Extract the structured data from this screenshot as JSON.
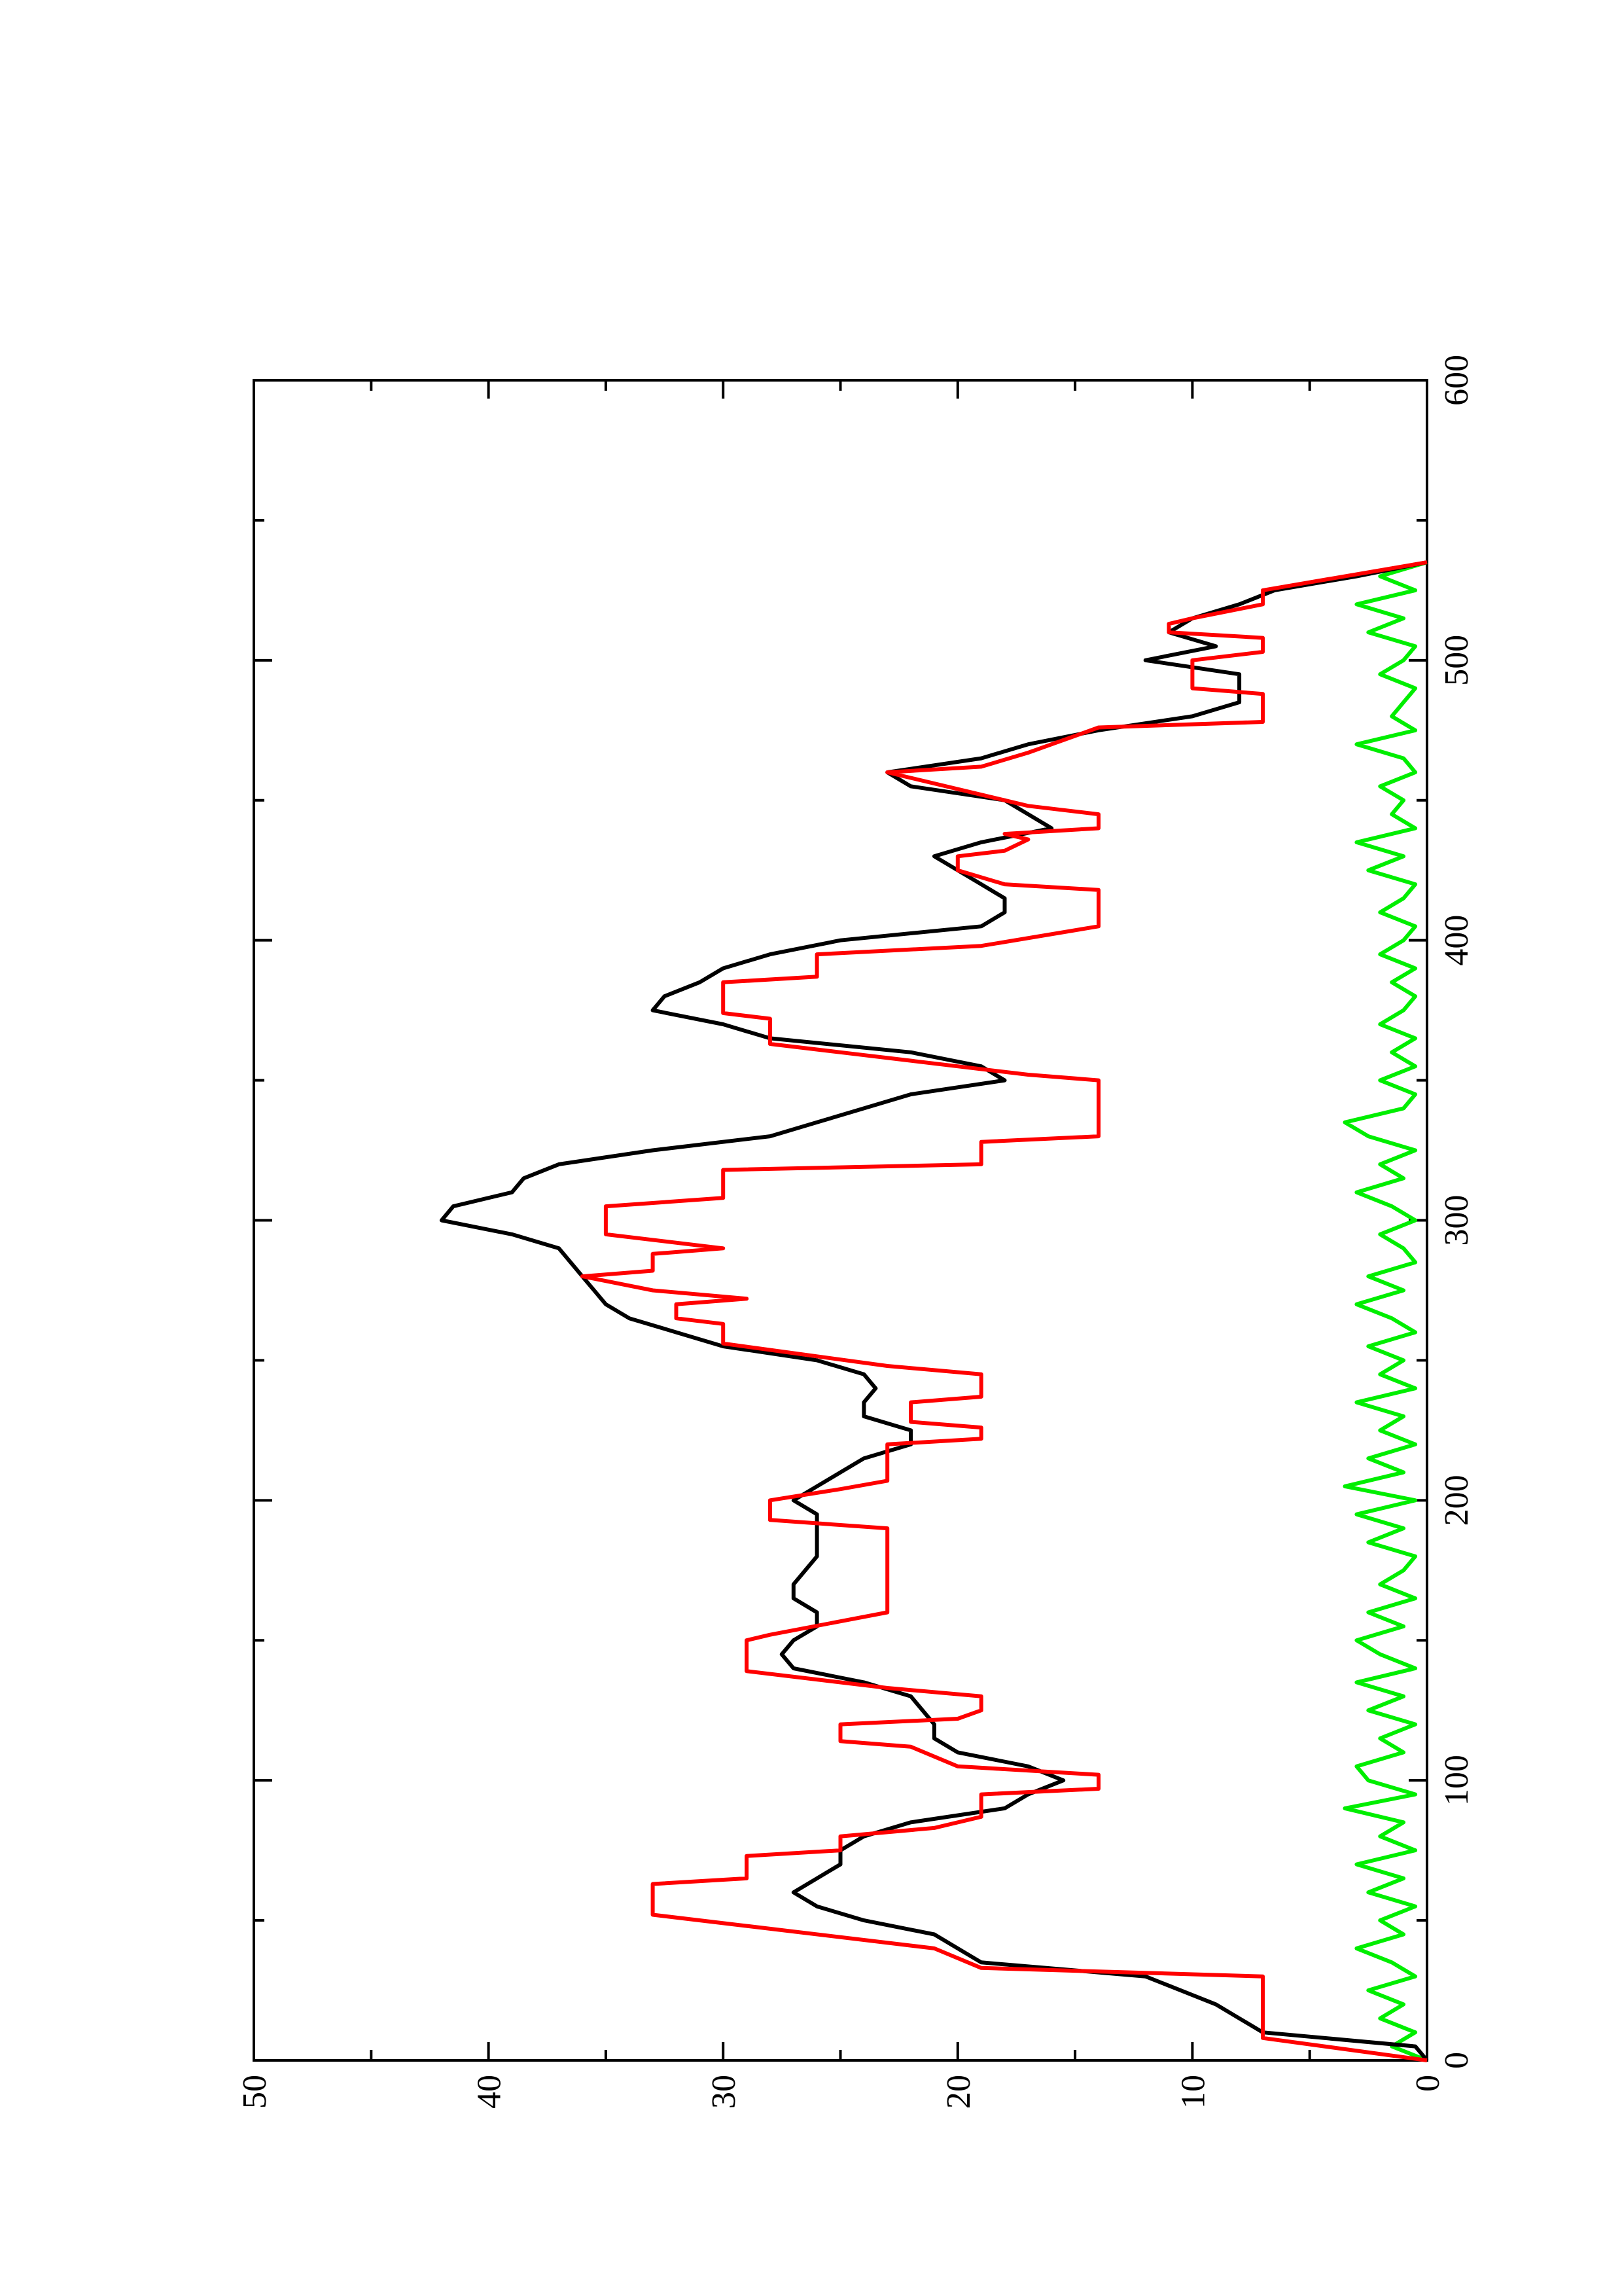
{
  "chart_data": {
    "type": "line",
    "xlim": [
      0,
      600
    ],
    "xticks": [
      0,
      100,
      200,
      300,
      400,
      500,
      600
    ],
    "xminor_ticks": [
      50,
      150,
      250,
      350,
      450,
      550
    ],
    "ylim": [
      0,
      50
    ],
    "yticks": [
      0,
      10,
      20,
      30,
      40,
      50
    ],
    "yminor_ticks": [
      5,
      15,
      25,
      35,
      45
    ],
    "series": [
      {
        "color": "#000000",
        "x": [
          0,
          5,
          10,
          15,
          20,
          30,
          35,
          40,
          45,
          50,
          55,
          60,
          65,
          70,
          75,
          80,
          85,
          90,
          95,
          100,
          105,
          110,
          115,
          120,
          125,
          130,
          135,
          140,
          145,
          150,
          155,
          160,
          165,
          170,
          175,
          180,
          185,
          190,
          195,
          200,
          205,
          210,
          215,
          220,
          225,
          230,
          235,
          240,
          245,
          250,
          255,
          260,
          265,
          270,
          275,
          280,
          285,
          290,
          295,
          300,
          305,
          310,
          315,
          320,
          325,
          330,
          335,
          340,
          345,
          350,
          355,
          360,
          365,
          370,
          375,
          380,
          385,
          390,
          395,
          400,
          405,
          410,
          415,
          420,
          425,
          430,
          435,
          440,
          445,
          450,
          455,
          460,
          465,
          470,
          475,
          480,
          485,
          490,
          495,
          500,
          505,
          510,
          515,
          520,
          525,
          530,
          535
        ],
        "values": [
          0,
          0.5,
          7,
          8,
          9,
          12,
          19,
          20,
          21,
          24,
          26,
          27,
          26,
          25,
          25,
          24,
          22,
          18,
          17,
          15.5,
          17,
          20,
          21,
          21,
          21.5,
          22,
          24,
          27,
          27.5,
          27,
          26,
          26,
          27,
          27,
          26.5,
          26,
          26,
          26,
          26,
          27,
          26,
          25,
          24,
          22,
          22,
          24,
          24,
          23.5,
          24,
          26,
          30,
          32,
          34,
          35,
          35.5,
          36,
          36.5,
          37,
          39,
          42,
          41.5,
          39,
          38.5,
          37,
          33,
          28,
          26,
          24,
          22,
          18,
          19,
          22,
          28,
          30,
          33,
          32.5,
          31,
          30,
          28,
          25,
          19,
          18,
          18,
          19,
          20,
          21,
          19,
          16,
          17,
          18,
          22,
          23,
          19,
          17,
          14,
          10,
          8,
          8,
          8,
          12,
          9,
          11,
          10,
          8,
          6.5,
          3,
          0
        ]
      },
      {
        "color": "#ff0000",
        "x": [
          0,
          8,
          30,
          33,
          40,
          48,
          52,
          63,
          65,
          73,
          75,
          80,
          83,
          87,
          95,
          97,
          102,
          105,
          112,
          114,
          120,
          122,
          125,
          130,
          133,
          139,
          150,
          152,
          160,
          190,
          193,
          200,
          204,
          207,
          220,
          222,
          226,
          228,
          235,
          237,
          245,
          248,
          256,
          263,
          265,
          270,
          272,
          275,
          280,
          282,
          288,
          290,
          295,
          305,
          308,
          318,
          320,
          328,
          330,
          350,
          352,
          360,
          363,
          372,
          374,
          385,
          387,
          395,
          398,
          405,
          418,
          420,
          425,
          430,
          432,
          436,
          438,
          440,
          445,
          448,
          460,
          462,
          467,
          476,
          478,
          488,
          490,
          500,
          503,
          508,
          510,
          513,
          515,
          520,
          525,
          535
        ],
        "values": [
          0,
          7,
          7,
          19,
          21,
          29,
          33,
          33,
          29,
          29,
          25,
          25,
          21,
          19,
          19,
          14,
          14,
          20,
          22,
          25,
          25,
          20,
          19,
          19,
          23,
          29,
          29,
          28,
          23,
          23,
          28,
          28,
          25,
          23,
          23,
          19,
          19,
          22,
          22,
          19,
          19,
          23,
          30,
          30,
          32,
          32,
          29,
          33,
          36,
          33,
          33,
          30,
          35,
          35,
          30,
          30,
          19,
          19,
          14,
          14,
          17,
          25,
          28,
          28,
          30,
          30,
          26,
          26,
          19,
          14,
          14,
          18,
          20,
          20,
          18,
          17,
          18,
          14,
          14,
          17,
          23,
          19,
          17,
          14,
          7,
          7,
          10,
          10,
          7,
          7,
          11,
          11,
          10,
          7,
          7,
          0
        ]
      },
      {
        "color": "#00ee00",
        "x": [
          0,
          5,
          10,
          15,
          20,
          25,
          30,
          35,
          40,
          45,
          50,
          55,
          60,
          65,
          70,
          75,
          80,
          85,
          90,
          95,
          100,
          105,
          110,
          115,
          120,
          125,
          130,
          135,
          140,
          145,
          150,
          155,
          160,
          165,
          170,
          175,
          180,
          185,
          190,
          195,
          200,
          205,
          210,
          215,
          220,
          225,
          230,
          235,
          240,
          245,
          250,
          255,
          260,
          265,
          270,
          275,
          280,
          285,
          290,
          295,
          300,
          305,
          310,
          315,
          320,
          325,
          330,
          335,
          340,
          345,
          350,
          355,
          360,
          365,
          370,
          375,
          380,
          385,
          390,
          395,
          400,
          405,
          410,
          415,
          420,
          425,
          430,
          435,
          440,
          445,
          450,
          455,
          460,
          465,
          470,
          475,
          480,
          485,
          490,
          495,
          500,
          505,
          510,
          515,
          520,
          525,
          530,
          535
        ],
        "values": [
          0,
          1.5,
          0.5,
          2,
          1,
          2.5,
          0.5,
          1.5,
          3,
          1,
          2,
          0.5,
          2.5,
          1,
          3,
          0.5,
          2,
          1,
          3.5,
          0.5,
          2.5,
          3,
          1,
          2,
          0.5,
          2.5,
          1,
          3,
          0.5,
          2,
          3,
          1,
          2.5,
          0.5,
          2,
          1,
          0.5,
          2.5,
          1,
          3,
          0.5,
          3.5,
          1,
          2.5,
          0.5,
          2,
          1,
          3,
          0.5,
          2,
          1,
          2.5,
          0.5,
          1.5,
          3,
          1,
          2.5,
          0.5,
          1,
          2,
          0.5,
          1.5,
          3,
          1,
          2,
          0.5,
          2.5,
          3.5,
          1,
          0.5,
          2,
          0.5,
          1.5,
          0.5,
          2,
          1,
          0.5,
          1.5,
          0.5,
          2,
          1,
          0.5,
          2,
          1,
          0.5,
          2.5,
          1,
          3,
          0.5,
          1.5,
          1,
          2,
          0.5,
          1,
          3,
          0.5,
          1.5,
          1,
          0.5,
          2,
          1,
          0.5,
          2.5,
          1,
          3,
          0.5,
          2,
          0
        ]
      }
    ]
  }
}
